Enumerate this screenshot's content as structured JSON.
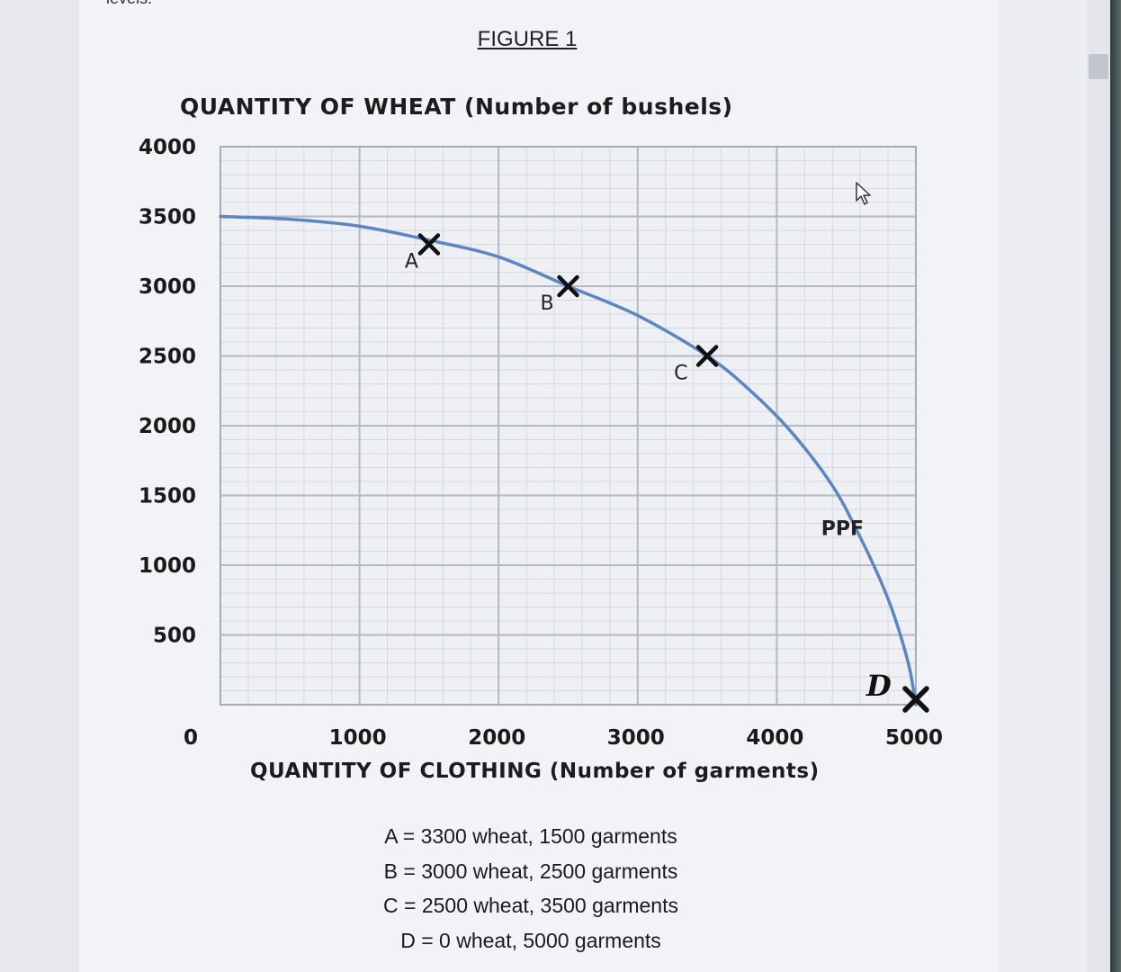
{
  "page": {
    "cut_text": "levels.",
    "figure_title": "FIGURE 1"
  },
  "chart_data": {
    "type": "line",
    "title": "FIGURE 1",
    "ylabel": "QUANTITY OF WHEAT (Number of bushels)",
    "xlabel": "QUANTITY OF CLOTHING (Number of garments)",
    "xlim": [
      0,
      5000
    ],
    "ylim": [
      0,
      4000
    ],
    "x_ticks": [
      0,
      1000,
      2000,
      3000,
      4000,
      5000
    ],
    "y_ticks": [
      500,
      1000,
      1500,
      2000,
      2500,
      3000,
      3500,
      4000
    ],
    "x_tick_labels": [
      "0",
      "1000",
      "2000",
      "3000",
      "4000",
      "5000"
    ],
    "y_tick_labels": [
      "500",
      "1000",
      "1500",
      "2000",
      "2500",
      "3000",
      "3500",
      "4000"
    ],
    "grid": true,
    "grid_minor_per_major": 5,
    "series": [
      {
        "name": "PPF",
        "color": "#5b86c4",
        "x": [
          0,
          500,
          1000,
          1500,
          2000,
          2500,
          3000,
          3500,
          3800,
          4100,
          4400,
          4600,
          4750,
          4850,
          4950,
          5000
        ],
        "y": [
          3500,
          3480,
          3430,
          3330,
          3210,
          3000,
          2790,
          2500,
          2260,
          1960,
          1570,
          1200,
          880,
          620,
          280,
          0
        ]
      }
    ],
    "points": [
      {
        "label": "A",
        "x": 1500,
        "y": 3300
      },
      {
        "label": "B",
        "x": 2500,
        "y": 3000
      },
      {
        "label": "C",
        "x": 3500,
        "y": 2500
      },
      {
        "label": "D",
        "x": 5000,
        "y": 0
      }
    ],
    "annotations": [
      {
        "text": "PPF",
        "x": 4300,
        "y": 1250
      }
    ],
    "marker_color": "#111111"
  },
  "notes": [
    "A = 3300 wheat, 1500 garments",
    "B = 3000 wheat, 2500 garments",
    "C = 2500 wheat, 3500 garments",
    "D = 0 wheat, 5000 garments"
  ],
  "cursor_icon": "mouse-pointer-icon"
}
